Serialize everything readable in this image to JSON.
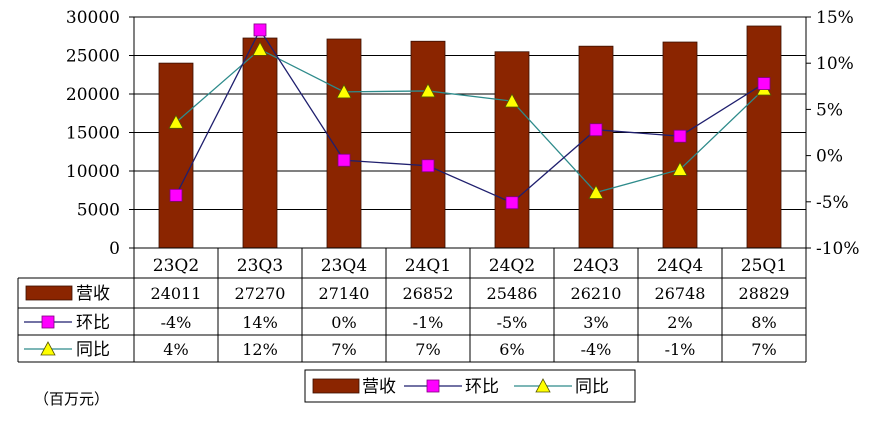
{
  "unit_label": "（百万元）",
  "chart_data": {
    "type": "bar",
    "categories": [
      "23Q2",
      "23Q3",
      "23Q4",
      "24Q1",
      "24Q2",
      "24Q3",
      "24Q4",
      "25Q1"
    ],
    "y_left": {
      "range": [
        0,
        30000
      ],
      "ticks": [
        "0",
        "5000",
        "10000",
        "15000",
        "20000",
        "25000",
        "30000"
      ]
    },
    "y_right": {
      "range": [
        -10,
        15
      ],
      "ticks": [
        "-10%",
        "-5%",
        "0%",
        "5%",
        "10%",
        "15%"
      ]
    },
    "grid": "horizontal",
    "legend_position": "bottom",
    "series": [
      {
        "name": "营收",
        "type": "bar",
        "axis": "left",
        "color": "#8B2500",
        "values": [
          24011,
          27270,
          27140,
          26852,
          25486,
          26210,
          26748,
          28829
        ],
        "table_values": [
          "24011",
          "27270",
          "27140",
          "26852",
          "25486",
          "26210",
          "26748",
          "28829"
        ]
      },
      {
        "name": "环比",
        "type": "line",
        "axis": "right",
        "color": "#1F1F6E",
        "marker": "square",
        "marker_color": "#FF00FF",
        "values": [
          -4.3,
          13.6,
          -0.5,
          -1.1,
          -5.1,
          2.8,
          2.1,
          7.8
        ],
        "table_values": [
          "-4%",
          "14%",
          "0%",
          "-1%",
          "-5%",
          "3%",
          "2%",
          "8%"
        ]
      },
      {
        "name": "同比",
        "type": "line",
        "axis": "right",
        "color": "#2E8B8B",
        "marker": "triangle",
        "marker_color": "#FFFF00",
        "values": [
          3.6,
          11.5,
          6.9,
          7.0,
          5.9,
          -4.0,
          -1.5,
          7.2
        ],
        "table_values": [
          "4%",
          "12%",
          "7%",
          "7%",
          "6%",
          "-4%",
          "-1%",
          "7%"
        ]
      }
    ]
  }
}
